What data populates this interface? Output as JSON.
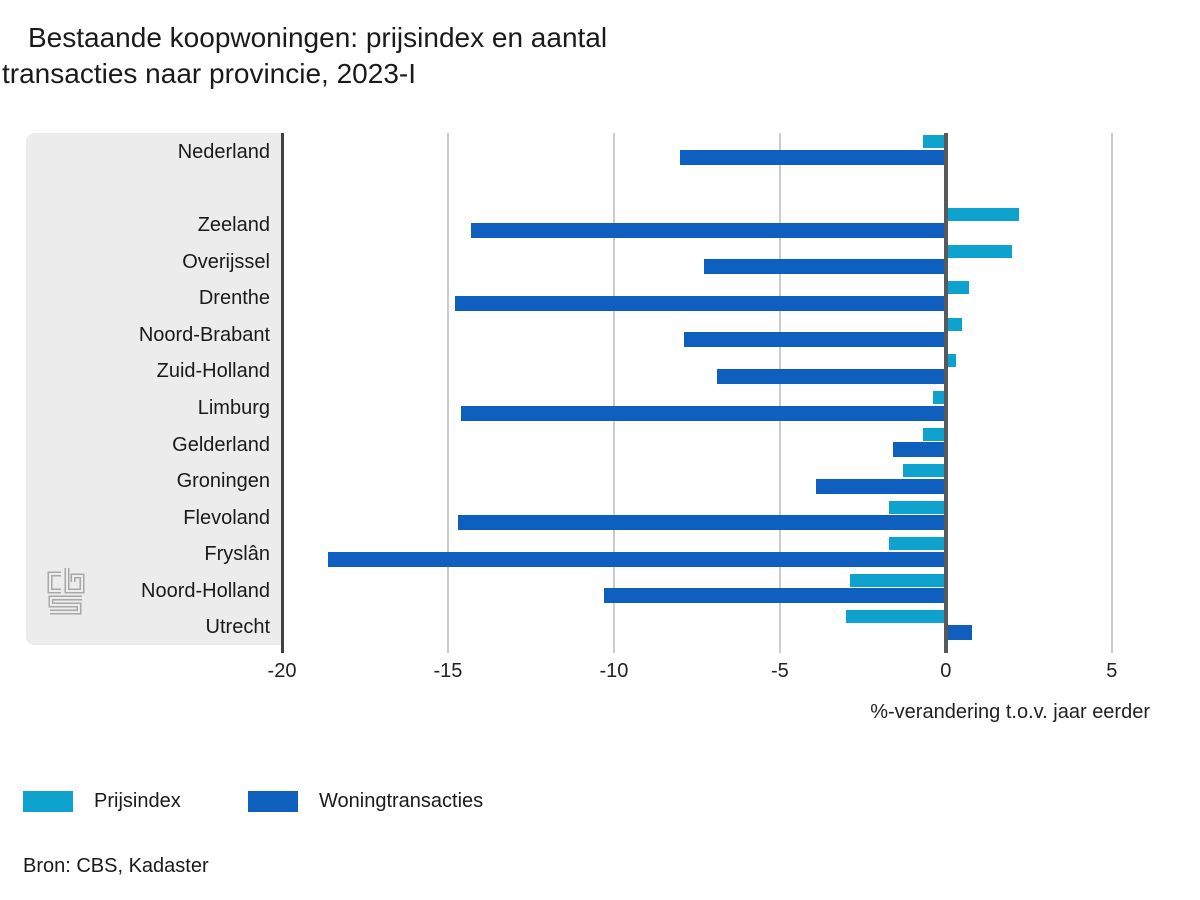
{
  "title": {
    "line1": "Bestaande koopwoningen: prijsindex en aantal",
    "line2": "transacties naar provincie, 2023-I"
  },
  "chart_data": {
    "type": "bar",
    "orientation": "horizontal",
    "categories": [
      "Nederland",
      "Zeeland",
      "Overijssel",
      "Drenthe",
      "Noord-Brabant",
      "Zuid-Holland",
      "Limburg",
      "Gelderland",
      "Groningen",
      "Flevoland",
      "Fryslân",
      "Noord-Holland",
      "Utrecht"
    ],
    "series": [
      {
        "name": "Prijsindex",
        "color": "#0ea2cf",
        "values": [
          -0.7,
          2.2,
          2.0,
          0.7,
          0.5,
          0.3,
          -0.4,
          -0.7,
          -1.3,
          -1.7,
          -1.7,
          -2.9,
          -3.0
        ]
      },
      {
        "name": "Woningtransacties",
        "color": "#0e5fbe",
        "values": [
          -8.0,
          -14.3,
          -7.3,
          -14.8,
          -7.9,
          -6.9,
          -14.6,
          -1.6,
          -3.9,
          -14.7,
          -18.6,
          -10.3,
          0.8
        ]
      }
    ],
    "xlabel": "%-verandering t.o.v. jaar eerder",
    "xticks": [
      -20,
      -15,
      -10,
      -5,
      0,
      5
    ],
    "xlim": [
      -20,
      6.15
    ],
    "grid": true,
    "legend_position": "bottom",
    "gap_after_first_category": true
  },
  "source": "Bron: CBS, Kadaster",
  "icons": {
    "logo": "cbs-logo"
  },
  "colors": {
    "panel": "#ececec",
    "gridline": "#cccccc",
    "zero_line": "#58595b",
    "left_axis_line": "#404040",
    "text": "#1a1a1a",
    "logo": "#a8a8a8"
  }
}
